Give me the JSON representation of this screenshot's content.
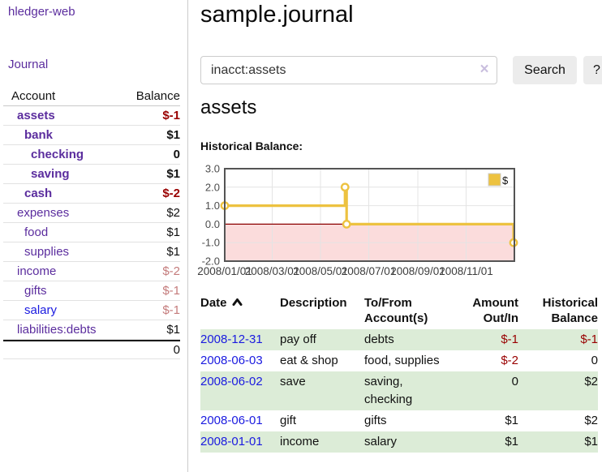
{
  "app": {
    "brand": "hledger-web"
  },
  "sidebar": {
    "nav": {
      "journal": "Journal"
    },
    "table": {
      "account_header": "Account",
      "balance_header": "Balance",
      "accounts": [
        {
          "name": "assets",
          "balance": "$-1",
          "depth": 1,
          "current": true,
          "unvisited": false
        },
        {
          "name": "bank",
          "balance": "$1",
          "depth": 2,
          "current": true,
          "unvisited": false
        },
        {
          "name": "checking",
          "balance": "0",
          "depth": 3,
          "current": true,
          "unvisited": false
        },
        {
          "name": "saving",
          "balance": "$1",
          "depth": 3,
          "current": true,
          "unvisited": false
        },
        {
          "name": "cash",
          "balance": "$-2",
          "depth": 2,
          "current": true,
          "unvisited": false
        },
        {
          "name": "expenses",
          "balance": "$2",
          "depth": 1,
          "current": false,
          "unvisited": false
        },
        {
          "name": "food",
          "balance": "$1",
          "depth": 2,
          "current": false,
          "unvisited": false
        },
        {
          "name": "supplies",
          "balance": "$1",
          "depth": 2,
          "current": false,
          "unvisited": false
        },
        {
          "name": "income",
          "balance": "$-2",
          "depth": 1,
          "current": false,
          "unvisited": false
        },
        {
          "name": "gifts",
          "balance": "$-1",
          "depth": 2,
          "current": false,
          "unvisited": false
        },
        {
          "name": "salary",
          "balance": "$-1",
          "depth": 2,
          "current": false,
          "unvisited": true
        },
        {
          "name": "liabilities:debts",
          "balance": "$1",
          "depth": 1,
          "current": false,
          "unvisited": false
        }
      ],
      "total": "0"
    }
  },
  "main": {
    "title": "sample.journal",
    "search": {
      "value": "inacct:assets",
      "clear_icon": "×",
      "button": "Search",
      "help": "?"
    },
    "account_heading": "assets",
    "section_label": "Historical Balance:",
    "transactions": {
      "headers": {
        "date": "Date",
        "description": "Description",
        "tofrom_l1": "To/From",
        "tofrom_l2": "Account(s)",
        "amount_l1": "Amount",
        "amount_l2": "Out/In",
        "balance_l1": "Historical",
        "balance_l2": "Balance"
      },
      "rows": [
        {
          "date": "2008-12-31",
          "description": "pay off",
          "accounts": "debts",
          "amount": "$-1",
          "balance": "$-1"
        },
        {
          "date": "2008-06-03",
          "description": "eat & shop",
          "accounts": "food, supplies",
          "amount": "$-2",
          "balance": "0"
        },
        {
          "date": "2008-06-02",
          "description": "save",
          "accounts": "saving, checking",
          "amount": "0",
          "balance": "$2"
        },
        {
          "date": "2008-06-01",
          "description": "gift",
          "accounts": "gifts",
          "amount": "$1",
          "balance": "$2"
        },
        {
          "date": "2008-01-01",
          "description": "income",
          "accounts": "salary",
          "amount": "$1",
          "balance": "$1"
        }
      ]
    }
  },
  "chart_data": {
    "type": "line",
    "title": "Historical Balance",
    "step": true,
    "series": [
      {
        "name": "$",
        "color": "#edc240",
        "points": [
          [
            "2008-01-01",
            1
          ],
          [
            "2008-06-01",
            2
          ],
          [
            "2008-06-03",
            0
          ],
          [
            "2008-12-31",
            -1
          ]
        ]
      }
    ],
    "x_ticks": [
      "2008/01/01",
      "2008/03/01",
      "2008/05/01",
      "2008/07/01",
      "2008/09/01",
      "2008/11/01"
    ],
    "y_ticks": [
      "3.0",
      "2.0",
      "1.0",
      "0.0",
      "-1.0",
      "-2.0"
    ],
    "xlim": [
      "2008-01-01",
      "2009-01-01"
    ],
    "ylim": [
      -2,
      3
    ],
    "grid": true,
    "legend_position": "top-right",
    "legend": "$",
    "colors": {
      "series": "#edc240",
      "negative_region_fill": "#fbdcdc",
      "zero_line": "#8b0000",
      "grid_line": "#e4e4e4",
      "border": "#545454",
      "tick_text": "#4d4d4d"
    }
  },
  "colors": {
    "link_purple": "#5b2d9e",
    "link_blue": "#1a1ae0",
    "negative_strong": "#990000",
    "negative_dim": "#c47b7b",
    "row_stripe_green": "#dcecd7"
  }
}
